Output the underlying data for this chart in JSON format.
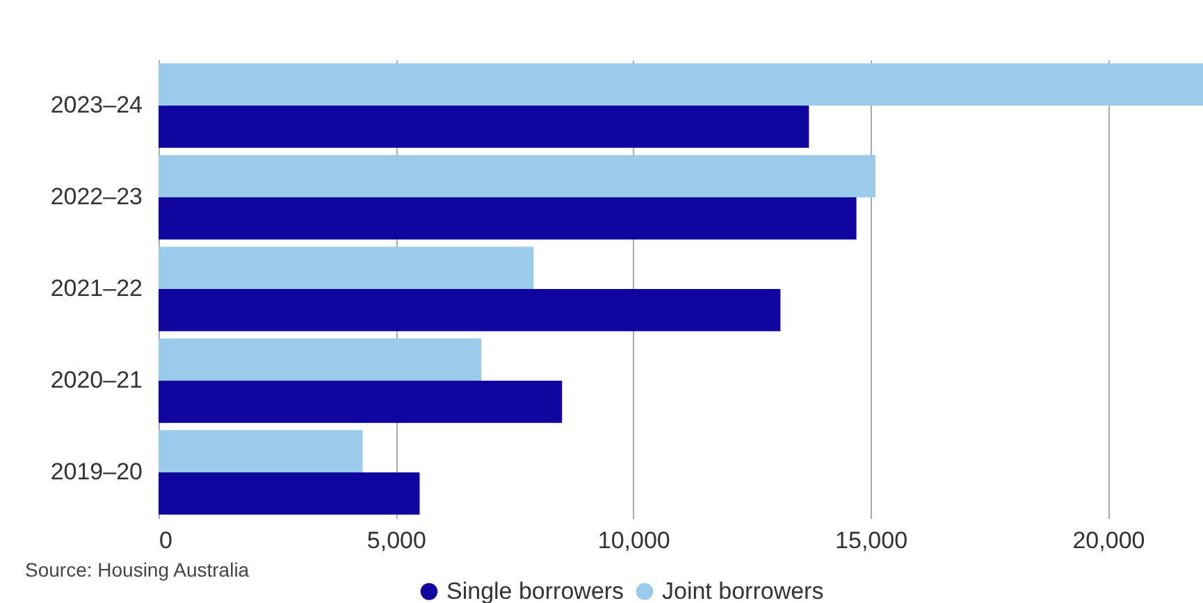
{
  "chart_data": {
    "type": "bar",
    "orientation": "horizontal",
    "categories": [
      "2023–24",
      "2022–23",
      "2021–22",
      "2020–21",
      "2019–20"
    ],
    "series": [
      {
        "name": "Single borrowers",
        "color": "#10069f",
        "values": [
          13700,
          14700,
          13100,
          8500,
          5500
        ]
      },
      {
        "name": "Joint borrowers",
        "color": "#9bcbeb",
        "values": [
          22000,
          15100,
          7900,
          6800,
          4300
        ]
      }
    ],
    "xlim": [
      0,
      22000
    ],
    "xticks": [
      0,
      {
        "value": 5000,
        "label": "5,000"
      },
      {
        "value": 10000,
        "label": "10,000"
      },
      {
        "value": 15000,
        "label": "15,000"
      },
      {
        "value": 20000,
        "label": "20,000"
      }
    ],
    "grid": "x",
    "legend": "bottom",
    "annotations": [
      "Source: Housing Australia"
    ]
  }
}
